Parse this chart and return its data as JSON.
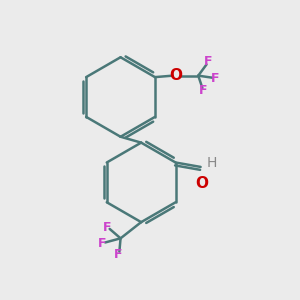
{
  "bg_color": "#ebebeb",
  "bond_color": "#4a7878",
  "bond_width": 1.8,
  "F_color": "#cc44cc",
  "O_color": "#cc0000",
  "H_color": "#888888",
  "font_size_atom": 10,
  "font_size_F": 9,
  "xlim": [
    0,
    10
  ],
  "ylim": [
    0,
    10
  ]
}
